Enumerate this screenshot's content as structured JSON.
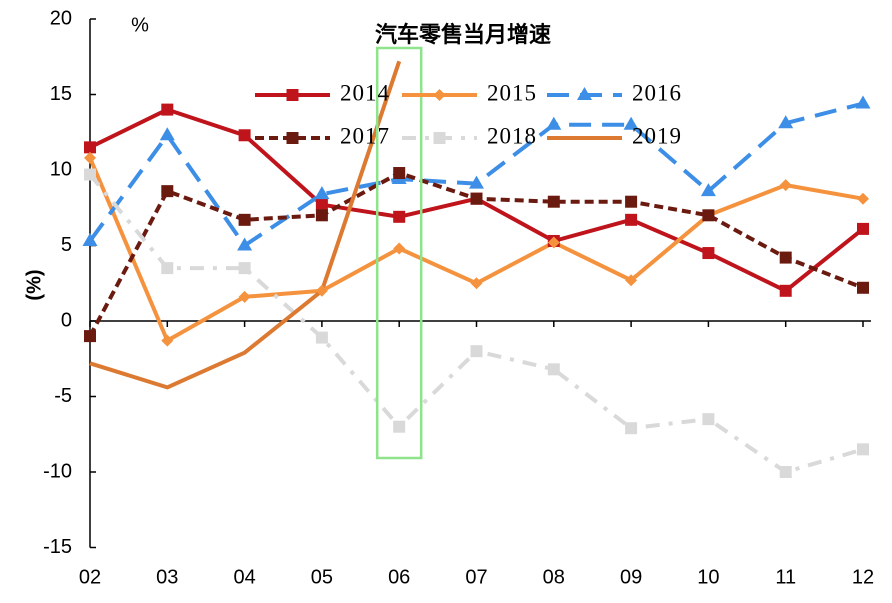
{
  "chart_data": {
    "type": "line",
    "title": "汽车零售当月增速",
    "ylabel": "(%)",
    "yunit_label": "%",
    "xlabel": "",
    "categories": [
      "02",
      "03",
      "04",
      "05",
      "06",
      "07",
      "08",
      "09",
      "10",
      "11",
      "12"
    ],
    "ylim": [
      -15,
      20
    ],
    "yticks": [
      20,
      15,
      10,
      5,
      0,
      -5,
      -10,
      -15
    ],
    "grid": false,
    "legend_position": "top",
    "series": [
      {
        "name": "2014",
        "values": [
          11.5,
          14.0,
          12.3,
          7.7,
          6.9,
          8.1,
          5.3,
          6.7,
          4.5,
          2.0,
          6.1
        ],
        "color": "#C0141C",
        "line": "solid",
        "marker": "square"
      },
      {
        "name": "2015",
        "values": [
          10.8,
          -1.3,
          1.6,
          2.0,
          4.8,
          2.5,
          5.2,
          2.7,
          7.0,
          9.0,
          8.1
        ],
        "color": "#F5923E",
        "line": "solid",
        "marker": "diamond"
      },
      {
        "name": "2016",
        "values": [
          5.3,
          12.3,
          5.0,
          8.4,
          9.4,
          9.1,
          13.0,
          13.0,
          8.6,
          13.1,
          14.4
        ],
        "color": "#3D8EE6",
        "line": "long-dash",
        "marker": "triangle"
      },
      {
        "name": "2017",
        "values": [
          -1.0,
          8.6,
          6.7,
          7.0,
          9.8,
          8.1,
          7.9,
          7.9,
          7.0,
          4.2,
          2.2
        ],
        "color": "#6B1A10",
        "line": "dash",
        "marker": "square"
      },
      {
        "name": "2018",
        "values": [
          9.7,
          3.5,
          3.5,
          -1.1,
          -7.0,
          -2.0,
          -3.2,
          -7.1,
          -6.5,
          -10.0,
          -8.5
        ],
        "color": "#D9D9D9",
        "line": "dash-dot",
        "marker": "square"
      },
      {
        "name": "2019",
        "values": [
          -2.8,
          -4.4,
          -2.1,
          2.0,
          17.2,
          null,
          null,
          null,
          null,
          null,
          null
        ],
        "color": "#DD7A32",
        "line": "solid",
        "marker": "none"
      }
    ],
    "highlight": {
      "category": "06",
      "color": "#8FE38A"
    }
  }
}
